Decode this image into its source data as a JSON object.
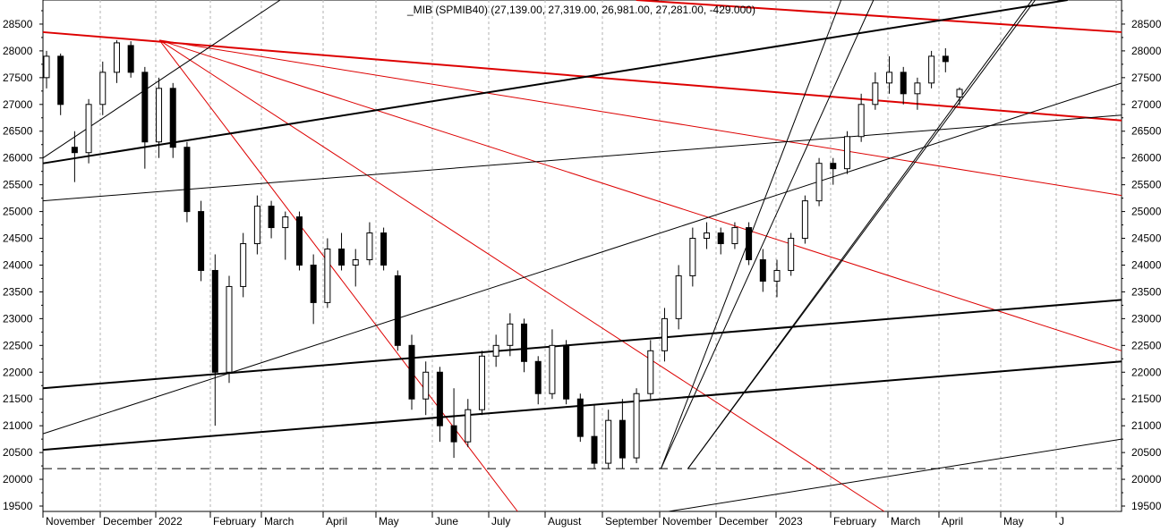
{
  "chart_data": {
    "type": "candlestick",
    "title": "_MIB (SPMIB40) (27,139.00, 27,319.00, 26,981.00, 27,281.00, -429.000)",
    "ylim": [
      19400,
      28950
    ],
    "y_ticks": [
      19500,
      20000,
      20500,
      21000,
      21500,
      22000,
      22500,
      23000,
      23500,
      24000,
      24500,
      25000,
      25500,
      26000,
      26500,
      27000,
      27500,
      28000,
      28500
    ],
    "x_labels": [
      "November",
      "December",
      "2022",
      "February",
      "March",
      "April",
      "May",
      "June",
      "July",
      "August",
      "September",
      "November",
      "December",
      "2023",
      "February",
      "March",
      "April",
      "May",
      "J"
    ],
    "grid": "vertical dashed at month starts",
    "dashed_support_level": 20200,
    "ohlc_sampled": [
      {
        "o": 27500,
        "h": 28000,
        "l": 27300,
        "c": 27900
      },
      {
        "o": 27900,
        "h": 27950,
        "l": 26800,
        "c": 27000
      },
      {
        "o": 26200,
        "h": 26500,
        "l": 25550,
        "c": 26100
      },
      {
        "o": 26100,
        "h": 27100,
        "l": 25900,
        "c": 27000
      },
      {
        "o": 27000,
        "h": 27800,
        "l": 26800,
        "c": 27600
      },
      {
        "o": 27600,
        "h": 28200,
        "l": 27400,
        "c": 28150
      },
      {
        "o": 28100,
        "h": 28180,
        "l": 27500,
        "c": 27600
      },
      {
        "o": 27600,
        "h": 27700,
        "l": 25800,
        "c": 26300
      },
      {
        "o": 26300,
        "h": 27500,
        "l": 26000,
        "c": 27300
      },
      {
        "o": 27300,
        "h": 27400,
        "l": 26000,
        "c": 26200
      },
      {
        "o": 26200,
        "h": 26300,
        "l": 24800,
        "c": 25000
      },
      {
        "o": 25000,
        "h": 25200,
        "l": 23700,
        "c": 23900
      },
      {
        "o": 23900,
        "h": 24200,
        "l": 21000,
        "c": 22000
      },
      {
        "o": 22000,
        "h": 23800,
        "l": 21800,
        "c": 23600
      },
      {
        "o": 23600,
        "h": 24600,
        "l": 23400,
        "c": 24400
      },
      {
        "o": 24400,
        "h": 25300,
        "l": 24200,
        "c": 25100
      },
      {
        "o": 25100,
        "h": 25200,
        "l": 24500,
        "c": 24700
      },
      {
        "o": 24700,
        "h": 25000,
        "l": 24100,
        "c": 24900
      },
      {
        "o": 24900,
        "h": 25000,
        "l": 23900,
        "c": 24000
      },
      {
        "o": 24000,
        "h": 24200,
        "l": 22900,
        "c": 23300
      },
      {
        "o": 23300,
        "h": 24500,
        "l": 23200,
        "c": 24300
      },
      {
        "o": 24300,
        "h": 24600,
        "l": 23900,
        "c": 24000
      },
      {
        "o": 24000,
        "h": 24300,
        "l": 23600,
        "c": 24100
      },
      {
        "o": 24100,
        "h": 24800,
        "l": 24000,
        "c": 24600
      },
      {
        "o": 24600,
        "h": 24700,
        "l": 23900,
        "c": 24000
      },
      {
        "o": 23800,
        "h": 23900,
        "l": 22400,
        "c": 22500
      },
      {
        "o": 22500,
        "h": 22700,
        "l": 21300,
        "c": 21500
      },
      {
        "o": 21500,
        "h": 22200,
        "l": 21200,
        "c": 22000
      },
      {
        "o": 22000,
        "h": 22100,
        "l": 20700,
        "c": 21000
      },
      {
        "o": 21000,
        "h": 21700,
        "l": 20400,
        "c": 20700
      },
      {
        "o": 20700,
        "h": 21500,
        "l": 20600,
        "c": 21300
      },
      {
        "o": 21300,
        "h": 22400,
        "l": 21200,
        "c": 22300
      },
      {
        "o": 22300,
        "h": 22700,
        "l": 22100,
        "c": 22500
      },
      {
        "o": 22500,
        "h": 23100,
        "l": 22300,
        "c": 22900
      },
      {
        "o": 22900,
        "h": 23000,
        "l": 22000,
        "c": 22200
      },
      {
        "o": 22200,
        "h": 22300,
        "l": 21400,
        "c": 21600
      },
      {
        "o": 21600,
        "h": 22800,
        "l": 21500,
        "c": 22500
      },
      {
        "o": 22500,
        "h": 22600,
        "l": 21400,
        "c": 21500
      },
      {
        "o": 21500,
        "h": 21600,
        "l": 20700,
        "c": 20800
      },
      {
        "o": 20800,
        "h": 21400,
        "l": 20200,
        "c": 20300
      },
      {
        "o": 20300,
        "h": 21300,
        "l": 20200,
        "c": 21100
      },
      {
        "o": 21100,
        "h": 21500,
        "l": 20200,
        "c": 20400
      },
      {
        "o": 20400,
        "h": 21700,
        "l": 20300,
        "c": 21600
      },
      {
        "o": 21600,
        "h": 22600,
        "l": 21500,
        "c": 22400
      },
      {
        "o": 22400,
        "h": 23200,
        "l": 22200,
        "c": 23000
      },
      {
        "o": 23000,
        "h": 24000,
        "l": 22800,
        "c": 23800
      },
      {
        "o": 23800,
        "h": 24700,
        "l": 23600,
        "c": 24500
      },
      {
        "o": 24500,
        "h": 24800,
        "l": 24300,
        "c": 24600
      },
      {
        "o": 24600,
        "h": 24700,
        "l": 24200,
        "c": 24400
      },
      {
        "o": 24400,
        "h": 24800,
        "l": 24300,
        "c": 24700
      },
      {
        "o": 24700,
        "h": 24800,
        "l": 24000,
        "c": 24100
      },
      {
        "o": 24100,
        "h": 24300,
        "l": 23500,
        "c": 23700
      },
      {
        "o": 23700,
        "h": 24100,
        "l": 23400,
        "c": 23900
      },
      {
        "o": 23900,
        "h": 24600,
        "l": 23800,
        "c": 24500
      },
      {
        "o": 24500,
        "h": 25300,
        "l": 24400,
        "c": 25200
      },
      {
        "o": 25200,
        "h": 26000,
        "l": 25100,
        "c": 25900
      },
      {
        "o": 25900,
        "h": 26000,
        "l": 25500,
        "c": 25800
      },
      {
        "o": 25800,
        "h": 26500,
        "l": 25700,
        "c": 26400
      },
      {
        "o": 26400,
        "h": 27200,
        "l": 26300,
        "c": 27000
      },
      {
        "o": 27000,
        "h": 27600,
        "l": 26900,
        "c": 27400
      },
      {
        "o": 27400,
        "h": 27900,
        "l": 27200,
        "c": 27600
      },
      {
        "o": 27600,
        "h": 27700,
        "l": 27000,
        "c": 27200
      },
      {
        "o": 27200,
        "h": 27500,
        "l": 26900,
        "c": 27400
      },
      {
        "o": 27400,
        "h": 28000,
        "l": 27300,
        "c": 27900
      },
      {
        "o": 27900,
        "h": 28050,
        "l": 27600,
        "c": 27800
      },
      {
        "o": 27139,
        "h": 27319,
        "l": 26981,
        "c": 27281
      }
    ],
    "trendlines": [
      {
        "color": "#dd0000",
        "weight": "bold",
        "from": [
          0,
          28350
        ],
        "to": [
          1,
          26700
        ]
      },
      {
        "color": "#dd0000",
        "weight": "thin",
        "from": [
          0.108,
          28200
        ],
        "to": [
          1,
          25300
        ]
      },
      {
        "color": "#dd0000",
        "weight": "thin",
        "from": [
          0.108,
          28200
        ],
        "to": [
          1,
          22400
        ]
      },
      {
        "color": "#dd0000",
        "weight": "thin",
        "from": [
          0.108,
          28200
        ],
        "to": [
          0.78,
          19400
        ]
      },
      {
        "color": "#dd0000",
        "weight": "thin",
        "from": [
          0.108,
          28200
        ],
        "to": [
          0.44,
          19400
        ]
      },
      {
        "color": "#dd0000",
        "weight": "bold",
        "from": [
          0.55,
          28950
        ],
        "to": [
          1,
          28350
        ]
      },
      {
        "color": "#000000",
        "weight": "bold",
        "from": [
          0,
          25900
        ],
        "to": [
          0.95,
          28950
        ]
      },
      {
        "color": "#000000",
        "weight": "bold",
        "from": [
          0,
          21700
        ],
        "to": [
          1,
          23350
        ]
      },
      {
        "color": "#000000",
        "weight": "bold",
        "from": [
          0,
          20550
        ],
        "to": [
          1,
          22200
        ]
      },
      {
        "color": "#000000",
        "weight": "thin",
        "from": [
          0,
          25200
        ],
        "to": [
          1,
          26800
        ]
      },
      {
        "color": "#000000",
        "weight": "thin",
        "from": [
          0,
          20850
        ],
        "to": [
          1,
          27400
        ]
      },
      {
        "color": "#000000",
        "weight": "thin",
        "from": [
          0,
          26000
        ],
        "to": [
          0.22,
          28950
        ]
      },
      {
        "color": "#000000",
        "weight": "thin",
        "from": [
          0.58,
          19400
        ],
        "to": [
          1,
          20750
        ]
      },
      {
        "color": "#000000",
        "weight": "thin",
        "from": [
          0.573,
          20200
        ],
        "to": [
          0.74,
          28950
        ]
      },
      {
        "color": "#000000",
        "weight": "thin",
        "from": [
          0.573,
          20200
        ],
        "to": [
          0.77,
          28950
        ]
      },
      {
        "color": "#000000",
        "weight": "thin",
        "from": [
          0.598,
          20200
        ],
        "to": [
          0.917,
          28950
        ]
      },
      {
        "color": "#000000",
        "weight": "thin",
        "from": [
          0.598,
          20200
        ],
        "to": [
          0.92,
          28950
        ]
      }
    ]
  }
}
